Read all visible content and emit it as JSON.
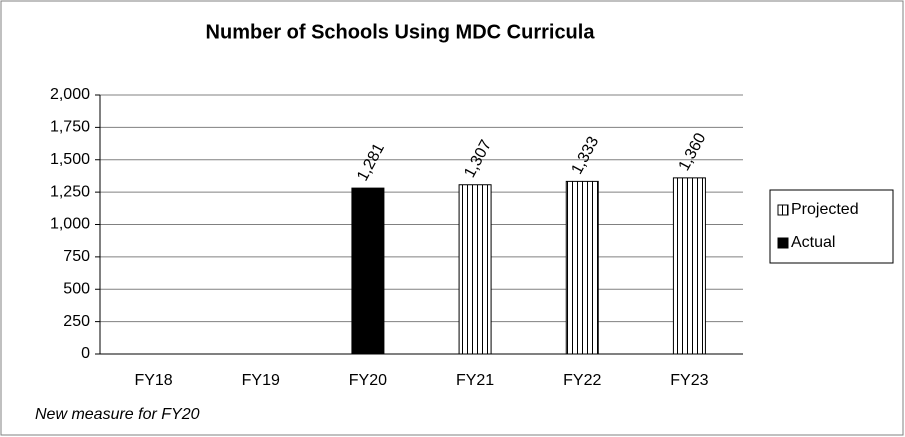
{
  "chart_data": {
    "type": "bar",
    "title": "Number of Schools Using MDC Curricula",
    "annotation": "New measure for FY20",
    "categories": [
      "FY18",
      "FY19",
      "FY20",
      "FY21",
      "FY22",
      "FY23"
    ],
    "series": [
      {
        "name": "Projected",
        "color": "#ffffff",
        "pattern": "vertical-stripes",
        "values": [
          null,
          null,
          null,
          1307,
          1333,
          1360
        ],
        "value_labels": [
          null,
          null,
          null,
          "1,307",
          "1,333",
          "1,360"
        ]
      },
      {
        "name": "Actual",
        "color": "#000000",
        "values": [
          null,
          null,
          1281,
          null,
          null,
          null
        ],
        "value_labels": [
          null,
          null,
          "1,281",
          null,
          null,
          null
        ]
      }
    ],
    "ylim": [
      0,
      2000
    ],
    "yticks": [
      0,
      250,
      500,
      750,
      {
        "value": 1000,
        "label": "1,000"
      },
      {
        "value": 1250,
        "label": "1,250"
      },
      {
        "value": 1500,
        "label": "1,500"
      },
      {
        "value": 1750,
        "label": "1,750"
      },
      {
        "value": 2000,
        "label": "2,000"
      }
    ],
    "grid": true,
    "legend": "right"
  }
}
